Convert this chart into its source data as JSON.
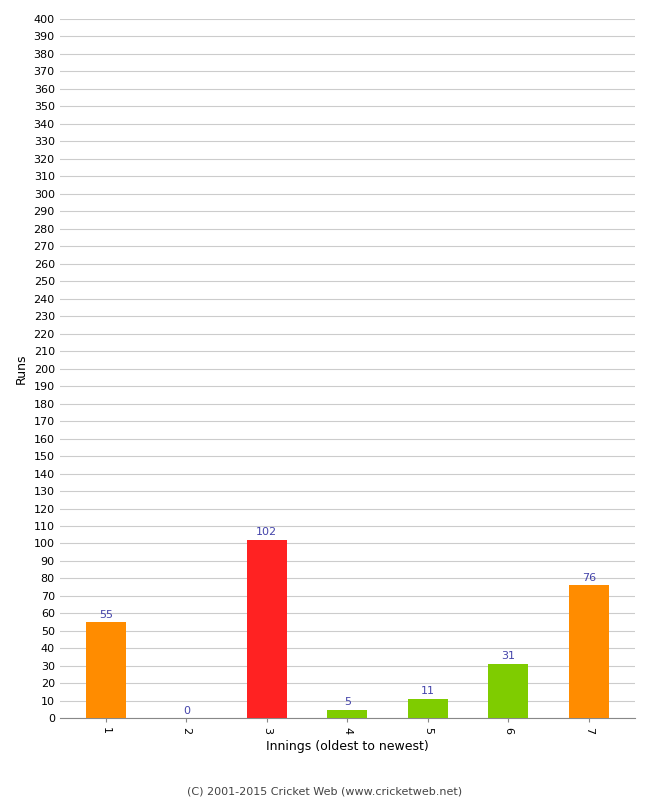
{
  "categories": [
    1,
    2,
    3,
    4,
    5,
    6,
    7
  ],
  "values": [
    55,
    0,
    102,
    5,
    11,
    31,
    76
  ],
  "bar_colors": [
    "#ff8c00",
    "#ff8c00",
    "#ff2222",
    "#7fcc00",
    "#7fcc00",
    "#7fcc00",
    "#ff8c00"
  ],
  "xlabel": "Innings (oldest to newest)",
  "ylabel": "Runs",
  "ylim": [
    0,
    400
  ],
  "yticks": [
    0,
    10,
    20,
    30,
    40,
    50,
    60,
    70,
    80,
    90,
    100,
    110,
    120,
    130,
    140,
    150,
    160,
    170,
    180,
    190,
    200,
    210,
    220,
    230,
    240,
    250,
    260,
    270,
    280,
    290,
    300,
    310,
    320,
    330,
    340,
    350,
    360,
    370,
    380,
    390,
    400
  ],
  "annotation_color": "#4444aa",
  "background_color": "#ffffff",
  "grid_color": "#cccccc",
  "footer": "(C) 2001-2015 Cricket Web (www.cricketweb.net)",
  "bar_width": 0.5
}
